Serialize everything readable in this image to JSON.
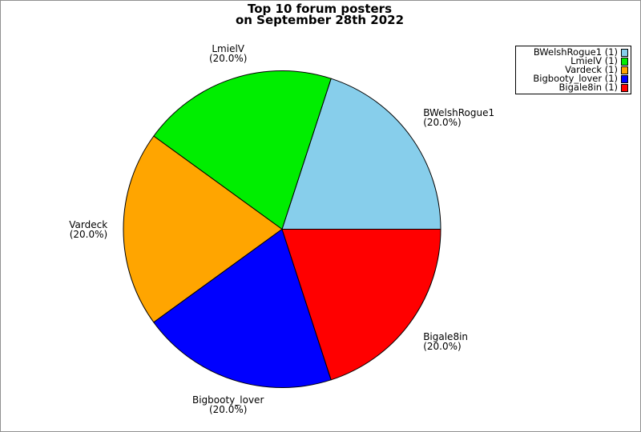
{
  "page": {
    "background_color": "#ffffff",
    "figure_border_color": "#909090"
  },
  "chart_data": {
    "type": "pie",
    "title": "Top 10 forum posters\non September 28th 2022",
    "start_angle_deg": 0,
    "direction": "counterclockwise",
    "grid": false,
    "legend_position": "upper-right",
    "legend_marker_side": "right",
    "slice_edge_color": "#000000",
    "total": 5,
    "slices": [
      {
        "label": "BWelshRogue1",
        "legend_label": "BWelshRogue1 (1)",
        "value": 1,
        "percent": 20.0,
        "percent_label": "(20.0%)",
        "color": "#87CEEB"
      },
      {
        "label": "LmielV",
        "legend_label": "LmielV (1)",
        "value": 1,
        "percent": 20.0,
        "percent_label": "(20.0%)",
        "color": "#00EE00"
      },
      {
        "label": "Vardeck",
        "legend_label": "Vardeck (1)",
        "value": 1,
        "percent": 20.0,
        "percent_label": "(20.0%)",
        "color": "#FFA500"
      },
      {
        "label": "Bigbooty_lover",
        "legend_label": "Bigbooty_lover (1)",
        "value": 1,
        "percent": 20.0,
        "percent_label": "(20.0%)",
        "color": "#0000FF"
      },
      {
        "label": "Bigale8in",
        "legend_label": "Bigale8in (1)",
        "value": 1,
        "percent": 20.0,
        "percent_label": "(20.0%)",
        "color": "#FF0000"
      }
    ]
  }
}
